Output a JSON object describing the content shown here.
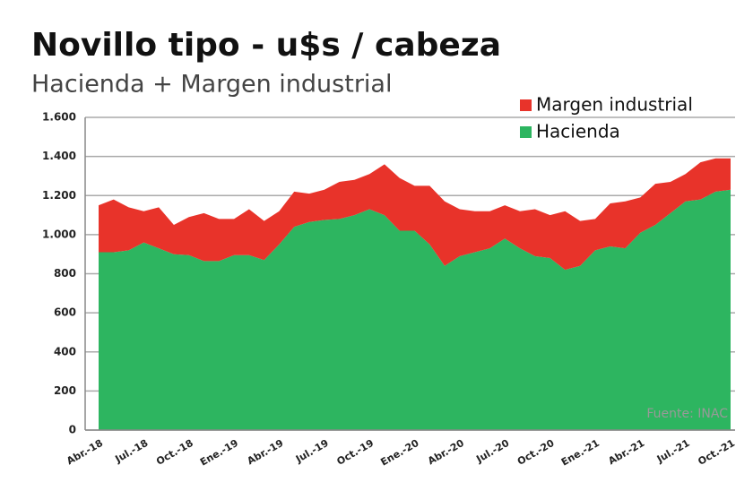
{
  "chart_data": {
    "type": "stacked_area",
    "title": "Novillo tipo - u$s / cabeza",
    "subtitle": "Hacienda + Margen industrial",
    "source": "Fuente: INAC",
    "categories": [
      "Abr.-18",
      null,
      null,
      "Jul.-18",
      null,
      null,
      "Oct.-18",
      null,
      null,
      "Ene.-19",
      null,
      null,
      "Abr.-19",
      null,
      null,
      "Jul.-19",
      null,
      null,
      "Oct.-19",
      null,
      null,
      "Ene.-20",
      null,
      null,
      "Abr.-20",
      null,
      null,
      "Jul.-20",
      null,
      null,
      "Oct.-20",
      null,
      null,
      "Ene.-21",
      null,
      null,
      "Abr.-21",
      null,
      null,
      "Jul.-21",
      null,
      null,
      "Oct.-21"
    ],
    "series": [
      {
        "name": "Hacienda",
        "color": "#2db560",
        "values": [
          910,
          910,
          920,
          960,
          930,
          900,
          895,
          865,
          865,
          895,
          895,
          870,
          950,
          1040,
          1065,
          1075,
          1080,
          1100,
          1130,
          1100,
          1020,
          1020,
          950,
          840,
          890,
          910,
          930,
          980,
          930,
          890,
          880,
          820,
          840,
          920,
          940,
          930,
          1010,
          1050,
          1110,
          1170,
          1180,
          1220,
          1230
        ]
      },
      {
        "name": "Margen industrial",
        "color": "#e8332a",
        "values": [
          240,
          270,
          220,
          160,
          210,
          150,
          195,
          245,
          215,
          185,
          235,
          200,
          170,
          180,
          145,
          155,
          190,
          180,
          180,
          260,
          270,
          230,
          300,
          330,
          240,
          210,
          190,
          170,
          190,
          240,
          220,
          300,
          230,
          160,
          220,
          240,
          180,
          210,
          160,
          140,
          190,
          170,
          160
        ]
      }
    ],
    "ylim": [
      0,
      1600
    ],
    "yticks": [
      0,
      200,
      400,
      600,
      800,
      {
        "value": 1000,
        "label": "1.000"
      },
      {
        "value": 1200,
        "label": "1.200"
      },
      {
        "value": 1400,
        "label": "1.400"
      },
      {
        "value": 1600,
        "label": "1.600"
      }
    ],
    "grid": true,
    "legend": "top-right"
  }
}
